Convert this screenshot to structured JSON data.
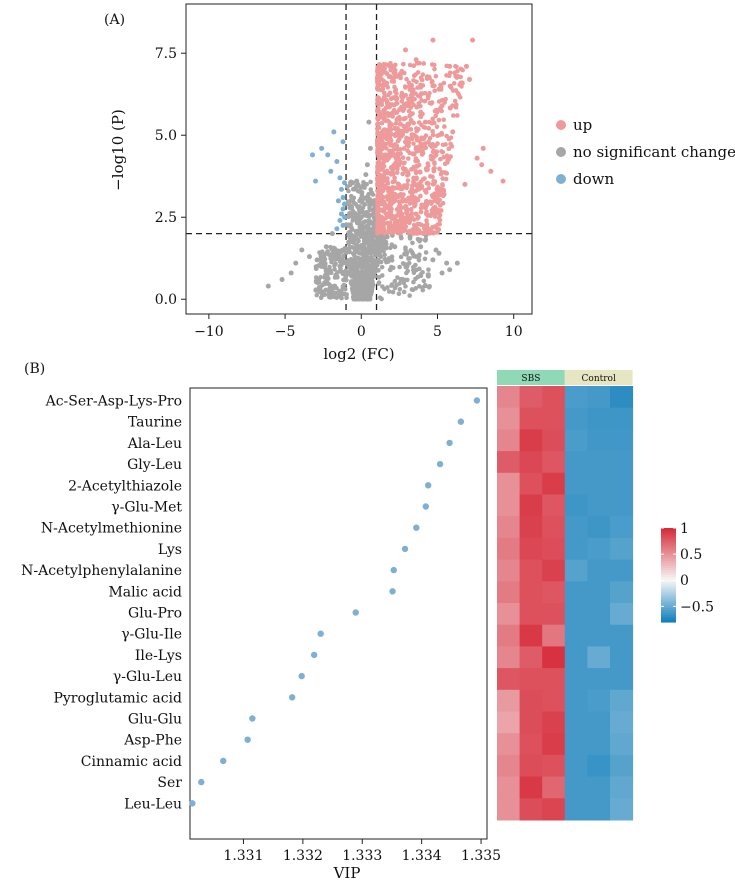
{
  "panels": {
    "a_label": "(A)",
    "b_label": "(B)"
  },
  "chart_data": [
    {
      "type": "scatter",
      "title": "",
      "xlabel": "log2 (FC)",
      "ylabel": "−log10 (P)",
      "xlim": [
        -11.5,
        11.2
      ],
      "ylim": [
        -0.45,
        9.0
      ],
      "xticks": [
        -10,
        -5,
        0,
        5,
        10
      ],
      "xtick_labels": [
        "−10",
        "−5",
        "0",
        "5",
        "10"
      ],
      "yticks": [
        0.0,
        2.5,
        5.0,
        7.5
      ],
      "ytick_labels": [
        "0.0",
        "2.5",
        "5.0",
        "7.5"
      ],
      "thresholds": {
        "fc": [
          -1,
          1
        ],
        "p": 2
      },
      "legend": {
        "position": "right",
        "entries": [
          {
            "key": "up",
            "label": "up",
            "color": "#ee9a9a"
          },
          {
            "key": "ns",
            "label": "no significant change",
            "color": "#a6a6a6"
          },
          {
            "key": "down",
            "label": "down",
            "color": "#7fb0d3"
          }
        ]
      },
      "series": [
        {
          "name": "down",
          "color": "#7fb0d3",
          "x": [
            -1.8,
            -1.2,
            -2.6,
            -3.2,
            -1.6,
            -2.2,
            -3.0,
            -1.4,
            -2.0,
            -1.1,
            -1.3,
            -1.2,
            -1.5,
            -1.1,
            -1.2,
            -1.3,
            -1.1,
            -1.4,
            -1.2,
            -1.6
          ],
          "y": [
            5.1,
            4.8,
            4.6,
            4.4,
            4.2,
            4.4,
            3.6,
            3.7,
            3.9,
            3.55,
            3.35,
            3.1,
            3.0,
            2.9,
            2.75,
            2.6,
            2.5,
            2.4,
            2.25,
            2.15
          ]
        },
        {
          "name": "up",
          "color": "#ee9a9a",
          "x": [
            4.7,
            7.3,
            5.8,
            6.9,
            6.2,
            7.1,
            5.1,
            2.9,
            3.6,
            8.0,
            7.6,
            8.5,
            9.3,
            4.2,
            3.9,
            3.3,
            2.8,
            2.3,
            1.6,
            4.1,
            6.0,
            5.3,
            4.4,
            3.0,
            2.5,
            1.8,
            1.4,
            2.2,
            3.6,
            5.4,
            6.8,
            7.9
          ],
          "y": [
            7.9,
            7.9,
            7.1,
            7.1,
            6.8,
            6.7,
            6.4,
            7.6,
            7.3,
            4.6,
            4.3,
            3.9,
            3.6,
            5.4,
            5.7,
            6.0,
            5.5,
            6.1,
            4.4,
            4.9,
            5.1,
            5.9,
            6.2,
            4.7,
            5.0,
            5.6,
            4.0,
            3.2,
            2.6,
            3.3,
            3.5,
            4.1
          ]
        },
        {
          "name": "ns",
          "color": "#a6a6a6",
          "x": [
            -4.6,
            -4.3,
            -3.9,
            -5.2,
            -6.1,
            -3.4,
            -2.9,
            -2.6,
            -2.3,
            -2.1,
            -1.9,
            -1.7,
            -0.3,
            -0.2,
            -0.1,
            0.0,
            0.1,
            0.2,
            0.3,
            0.4,
            0.6,
            0.5,
            1.2,
            1.7,
            2.2,
            3.0,
            3.6,
            4.2,
            4.7,
            5.3,
            5.6,
            4.9,
            2.6,
            1.9,
            3.2,
            3.9,
            4.4,
            5.1,
            6.3,
            5.8
          ],
          "y": [
            0.8,
            1.1,
            1.5,
            0.6,
            0.4,
            1.3,
            1.2,
            1.0,
            1.6,
            0.9,
            2.0,
            1.4,
            3.6,
            3.3,
            3.0,
            2.5,
            2.2,
            1.9,
            3.8,
            4.1,
            4.6,
            5.4,
            1.5,
            1.9,
            1.6,
            1.0,
            1.3,
            1.8,
            1.2,
            0.8,
            1.1,
            1.5,
            0.6,
            0.9,
            1.9,
            1.6,
            0.7,
            1.4,
            1.1,
            0.9
          ]
        }
      ]
    },
    {
      "type": "scatter",
      "subtype": "dot-plot",
      "title": "",
      "xlabel": "VIP",
      "ylabel": "",
      "xlim": [
        1.3301,
        1.3351
      ],
      "xticks": [
        1.331,
        1.332,
        1.333,
        1.334,
        1.335
      ],
      "xtick_labels": [
        "1.331",
        "1.332",
        "1.333",
        "1.334",
        "1.335"
      ],
      "point_color": "#7fb0d3",
      "categories": [
        "Ac-Ser-Asp-Lys-Pro",
        "Taurine",
        "Ala-Leu",
        "Gly-Leu",
        "2-Acetylthiazole",
        "γ-Glu-Met",
        "N-Acetylmethionine",
        "Lys",
        "N-Acetylphenylalanine",
        "Malic acid",
        "Glu-Pro",
        "γ-Glu-Ile",
        "Ile-Lys",
        "γ-Glu-Leu",
        "Pyroglutamic acid",
        "Glu-Glu",
        "Asp-Phe",
        "Cinnamic acid",
        "Ser",
        "Leu-Leu"
      ],
      "values": [
        1.33493,
        1.33466,
        1.33447,
        1.33431,
        1.33411,
        1.33407,
        1.33391,
        1.33372,
        1.33353,
        1.33351,
        1.33289,
        1.3323,
        1.33219,
        1.33198,
        1.33182,
        1.33115,
        1.33107,
        1.33066,
        1.33029,
        1.33014
      ]
    },
    {
      "type": "heatmap",
      "title": "",
      "groups": [
        {
          "label": "SBS",
          "color": "#8fd9b6",
          "columns": 3
        },
        {
          "label": "Control",
          "color": "#e6e6c3",
          "columns": 3
        }
      ],
      "rows": [
        "Ac-Ser-Asp-Lys-Pro",
        "Taurine",
        "Ala-Leu",
        "Gly-Leu",
        "2-Acetylthiazole",
        "γ-Glu-Met",
        "N-Acetylmethionine",
        "Lys",
        "N-Acetylphenylalanine",
        "Malic acid",
        "Glu-Pro",
        "γ-Glu-Ile",
        "Ile-Lys",
        "γ-Glu-Leu",
        "Pyroglutamic acid",
        "Glu-Glu",
        "Asp-Phe",
        "Cinnamic acid",
        "Ser",
        "Leu-Leu"
      ],
      "color_range": [
        -0.8,
        1.0
      ],
      "colorbar_ticks": [
        1,
        0.5,
        0,
        -0.5
      ],
      "colorbar_labels": [
        "1",
        "0.5",
        "0",
        "−0.5"
      ],
      "values": [
        [
          0.55,
          0.75,
          0.8,
          -0.6,
          -0.62,
          -0.7
        ],
        [
          0.5,
          0.8,
          0.8,
          -0.62,
          -0.64,
          -0.64
        ],
        [
          0.55,
          0.9,
          0.82,
          -0.6,
          -0.63,
          -0.63
        ],
        [
          0.75,
          0.85,
          0.78,
          -0.62,
          -0.62,
          -0.62
        ],
        [
          0.5,
          0.8,
          0.9,
          -0.62,
          -0.62,
          -0.62
        ],
        [
          0.5,
          0.9,
          0.78,
          -0.64,
          -0.62,
          -0.62
        ],
        [
          0.55,
          0.88,
          0.8,
          -0.62,
          -0.64,
          -0.6
        ],
        [
          0.6,
          0.85,
          0.82,
          -0.62,
          -0.6,
          -0.56
        ],
        [
          0.55,
          0.8,
          0.88,
          -0.56,
          -0.62,
          -0.62
        ],
        [
          0.6,
          0.8,
          0.78,
          -0.62,
          -0.62,
          -0.56
        ],
        [
          0.5,
          0.8,
          0.8,
          -0.62,
          -0.62,
          -0.5
        ],
        [
          0.6,
          0.92,
          0.62,
          -0.62,
          -0.62,
          -0.62
        ],
        [
          0.55,
          0.75,
          0.95,
          -0.62,
          -0.5,
          -0.62
        ],
        [
          0.78,
          0.8,
          0.8,
          -0.62,
          -0.62,
          -0.62
        ],
        [
          0.45,
          0.82,
          0.8,
          -0.62,
          -0.6,
          -0.52
        ],
        [
          0.4,
          0.82,
          0.88,
          -0.62,
          -0.62,
          -0.5
        ],
        [
          0.5,
          0.8,
          0.9,
          -0.62,
          -0.62,
          -0.52
        ],
        [
          0.55,
          0.82,
          0.8,
          -0.62,
          -0.66,
          -0.56
        ],
        [
          0.5,
          0.92,
          0.7,
          -0.62,
          -0.62,
          -0.52
        ],
        [
          0.5,
          0.82,
          0.86,
          -0.62,
          -0.62,
          -0.5
        ]
      ]
    }
  ]
}
